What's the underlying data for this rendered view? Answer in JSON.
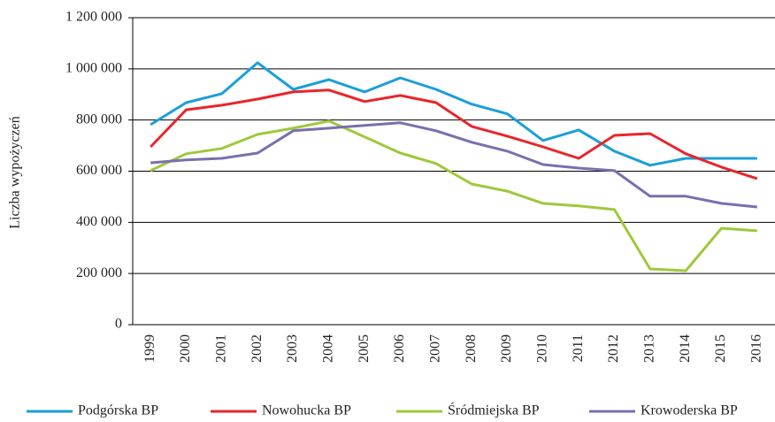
{
  "chart_data": {
    "type": "line",
    "y_label": "Liczba wypożyczeń",
    "categories": [
      "1999",
      "2000",
      "2001",
      "2002",
      "2003",
      "2004",
      "2005",
      "2006",
      "2007",
      "2008",
      "2009",
      "2010",
      "2011",
      "2012",
      "2013",
      "2014",
      "2015",
      "2016"
    ],
    "series": [
      {
        "name": "Podgórska BP",
        "color": "#1a9fd9",
        "values": [
          782000,
          868000,
          903000,
          1024000,
          920000,
          958000,
          910000,
          965000,
          920000,
          862000,
          824000,
          720000,
          761000,
          678000,
          623000,
          650000,
          650000,
          650000
        ]
      },
      {
        "name": "Nowohucka BP",
        "color": "#e8262b",
        "values": [
          695000,
          840000,
          858000,
          882000,
          910000,
          917000,
          872000,
          896000,
          868000,
          775000,
          737000,
          695000,
          650000,
          740000,
          747000,
          668000,
          616000,
          571000
        ]
      },
      {
        "name": "Śródmiejska BP",
        "color": "#9dc93b",
        "values": [
          602000,
          668000,
          689000,
          744000,
          768000,
          796000,
          734000,
          671000,
          630000,
          550000,
          522000,
          474000,
          464000,
          450000,
          218000,
          211000,
          377000,
          367000
        ]
      },
      {
        "name": "Krowoderska BP",
        "color": "#7a6fae",
        "values": [
          633000,
          644000,
          650000,
          671000,
          758000,
          768000,
          779000,
          789000,
          758000,
          713000,
          678000,
          626000,
          612000,
          602000,
          502000,
          502000,
          474000,
          460000
        ]
      }
    ],
    "ylim": [
      0,
      1200000
    ],
    "yticks": [
      0,
      {
        "value": 200000,
        "label": "200 000"
      },
      {
        "value": 400000,
        "label": "400 000"
      },
      {
        "value": 600000,
        "label": "600 000"
      },
      {
        "value": 800000,
        "label": "800 000"
      },
      {
        "value": 1000000,
        "label": "1 000 000"
      },
      {
        "value": 1200000,
        "label": "1 200 000"
      }
    ],
    "grid": true,
    "legend": "bottom"
  }
}
